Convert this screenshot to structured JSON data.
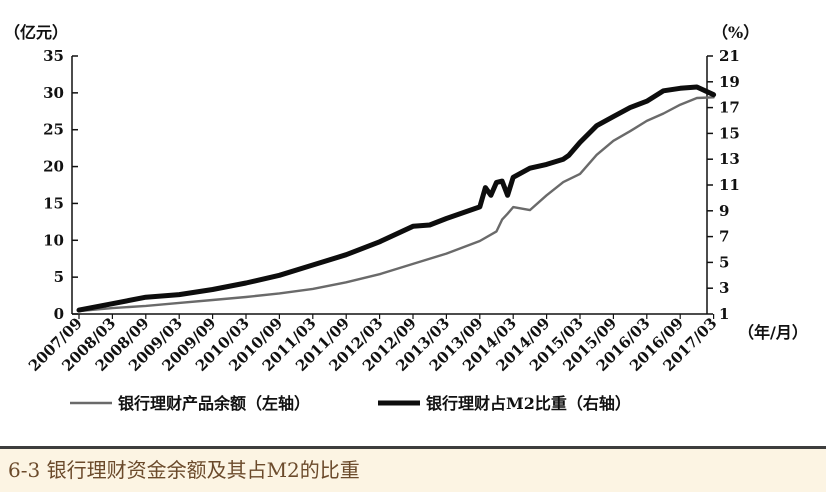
{
  "caption": "6-3 银行理财资金余额及其占M2的比重",
  "chart_data": {
    "type": "line",
    "left_unit": "（亿元）",
    "right_unit": "（%）",
    "x_unit": "（年/月）",
    "x_tick_labels": [
      "2007/09",
      "2008/03",
      "2008/09",
      "2009/03",
      "2009/09",
      "2010/03",
      "2010/09",
      "2011/03",
      "2011/09",
      "2012/03",
      "2012/09",
      "2013/03",
      "2013/09",
      "2014/03",
      "2014/09",
      "2015/03",
      "2015/09",
      "2016/03",
      "2016/09",
      "2017/03"
    ],
    "y_left": {
      "min": 0,
      "max": 35,
      "ticks": [
        0,
        5,
        10,
        15,
        20,
        25,
        30,
        35
      ]
    },
    "y_right": {
      "min": 1,
      "max": 21,
      "ticks": [
        1,
        3,
        5,
        7,
        9,
        11,
        13,
        15,
        17,
        19,
        21
      ]
    },
    "grid": false,
    "legend_position": "bottom",
    "series": [
      {
        "name": "银行理财产品余额（左轴）",
        "axis": "left",
        "style": "thin",
        "x": [
          "2007/09",
          "2008/03",
          "2008/09",
          "2009/03",
          "2009/09",
          "2010/03",
          "2010/09",
          "2011/03",
          "2011/09",
          "2012/03",
          "2012/09",
          "2013/03",
          "2013/09",
          "2013/12",
          "2014/01",
          "2014/02",
          "2014/03",
          "2014/06",
          "2014/09",
          "2014/12",
          "2015/03",
          "2015/06",
          "2015/09",
          "2015/12",
          "2016/03",
          "2016/06",
          "2016/09",
          "2016/12",
          "2017/03"
        ],
        "values": [
          0.4,
          0.8,
          1.1,
          1.5,
          1.9,
          2.3,
          2.8,
          3.4,
          4.3,
          5.4,
          6.8,
          8.2,
          9.9,
          11.2,
          12.8,
          13.6,
          14.5,
          14.1,
          16.1,
          17.9,
          19.0,
          21.6,
          23.5,
          24.8,
          26.2,
          27.2,
          28.4,
          29.3,
          29.4
        ]
      },
      {
        "name": "银行理财占M2比重（右轴）",
        "axis": "right",
        "style": "thick",
        "x": [
          "2007/09",
          "2008/03",
          "2008/09",
          "2009/03",
          "2009/09",
          "2010/03",
          "2010/09",
          "2011/03",
          "2011/09",
          "2012/03",
          "2012/09",
          "2012/12",
          "2013/03",
          "2013/09",
          "2013/10",
          "2013/11",
          "2013/12",
          "2014/01",
          "2014/02",
          "2014/03",
          "2014/06",
          "2014/09",
          "2014/12",
          "2015/01",
          "2015/03",
          "2015/06",
          "2015/09",
          "2015/12",
          "2016/03",
          "2016/06",
          "2016/09",
          "2016/12",
          "2017/03"
        ],
        "values": [
          1.3,
          1.8,
          2.3,
          2.5,
          2.9,
          3.4,
          4.0,
          4.8,
          5.6,
          6.6,
          7.8,
          7.9,
          8.4,
          9.3,
          10.8,
          10.2,
          11.2,
          11.3,
          10.2,
          11.6,
          12.3,
          12.6,
          13.0,
          13.3,
          14.3,
          15.6,
          16.3,
          17.0,
          17.5,
          18.3,
          18.5,
          18.6,
          18.0
        ]
      }
    ]
  }
}
